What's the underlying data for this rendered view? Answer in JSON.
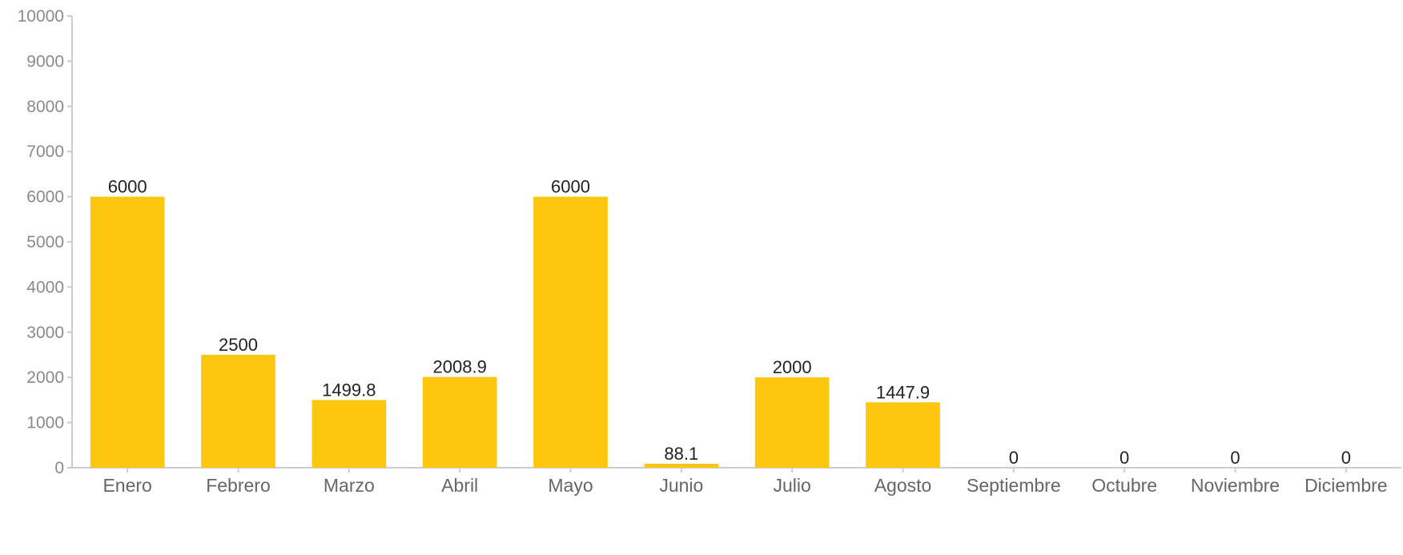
{
  "chart_data": {
    "type": "bar",
    "categories": [
      "Enero",
      "Febrero",
      "Marzo",
      "Abril",
      "Mayo",
      "Junio",
      "Julio",
      "Agosto",
      "Septiembre",
      "Octubre",
      "Noviembre",
      "Diciembre"
    ],
    "values": [
      6000,
      2500,
      1499.8,
      2008.9,
      6000,
      88.1,
      2000,
      1447.9,
      0,
      0,
      0,
      0
    ],
    "data_labels": [
      "6000",
      "2500",
      "1499.8",
      "2008.9",
      "6000",
      "88.1",
      "2000",
      "1447.9",
      "0",
      "0",
      "0",
      "0"
    ],
    "yticks": [
      "0",
      "1000",
      "2000",
      "3000",
      "4000",
      "5000",
      "6000",
      "7000",
      "8000",
      "9000",
      "10000"
    ],
    "ylim": [
      0,
      10000
    ],
    "bar_color": "#FDC70F",
    "axis_color": "#CCCCCC",
    "grid": false,
    "title": "",
    "xlabel": "",
    "ylabel": ""
  }
}
